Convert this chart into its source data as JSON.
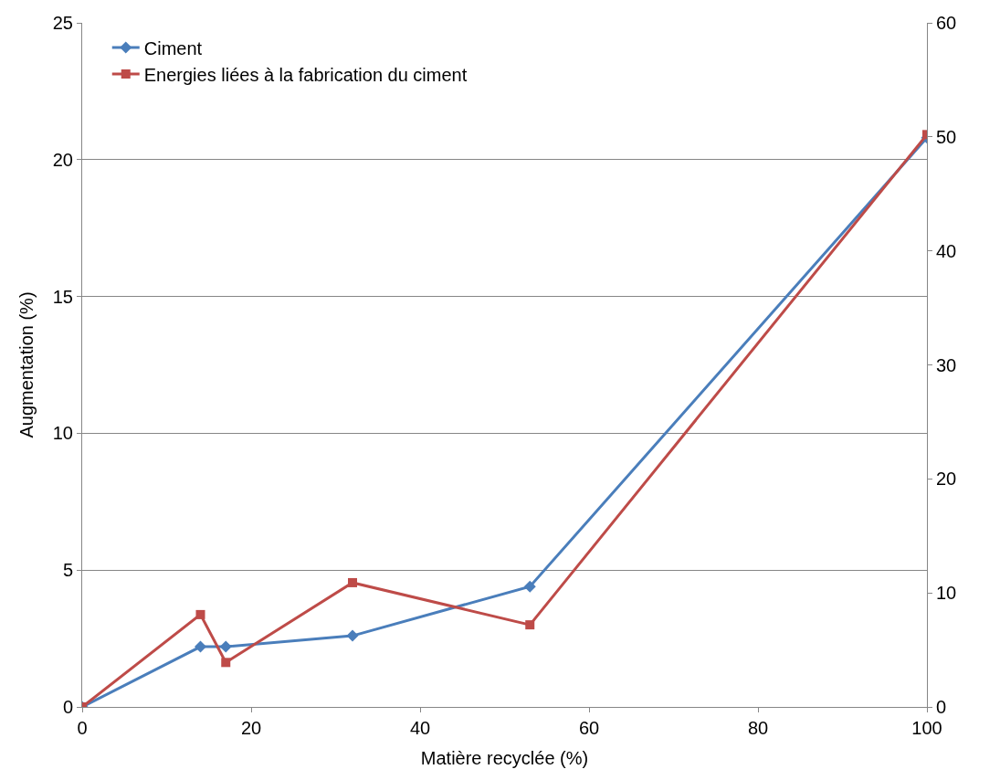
{
  "chart_data": {
    "type": "line",
    "xlabel": "Matière recyclée (%)",
    "ylabel": "Augmentation (%)",
    "xlim": [
      0,
      100
    ],
    "xticks": [
      0,
      20,
      40,
      60,
      80,
      100
    ],
    "ylim": [
      0,
      25
    ],
    "yticks": [
      0,
      5,
      10,
      15,
      20,
      25
    ],
    "y2lim": [
      0,
      60
    ],
    "y2ticks": [
      0,
      10,
      20,
      30,
      40,
      50,
      60
    ],
    "grid": "y",
    "legend": "top left",
    "series": [
      {
        "name": "Ciment",
        "color": "#4a7ebb",
        "marker": "diamond",
        "x": [
          0,
          14,
          17,
          32,
          53,
          100
        ],
        "values": [
          0,
          2.2,
          2.2,
          2.6,
          4.4,
          20.8
        ]
      },
      {
        "name": "Energies liées à la fabrication du ciment",
        "color": "#be4b48",
        "marker": "square",
        "axis": "y2",
        "x": [
          0,
          14,
          17,
          32,
          53,
          100
        ],
        "values": [
          0,
          8.1,
          3.9,
          10.9,
          7.2,
          50.2
        ]
      }
    ]
  }
}
